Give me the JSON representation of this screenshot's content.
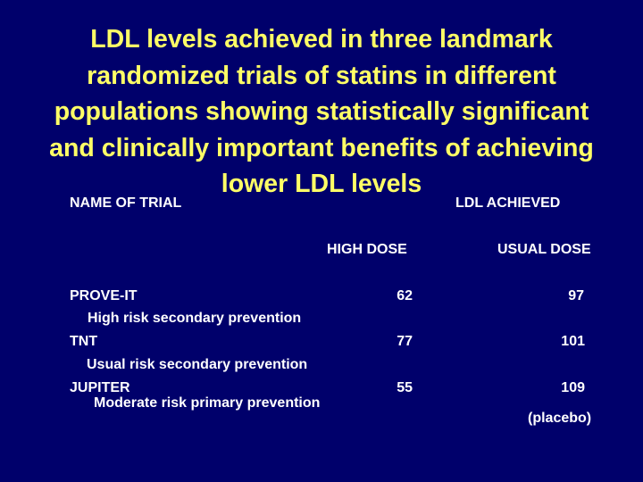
{
  "slide": {
    "title_lines": [
      "LDL levels achieved in three landmark",
      "randomized trials of statins in different",
      "populations showing statistically significant",
      "and clinically important benefits of achieving",
      "lower LDL levels"
    ],
    "colors": {
      "background": "#00006b",
      "title": "#ffff66",
      "body": "#ffffff"
    }
  },
  "table": {
    "header_trial": "NAME OF TRIAL",
    "header_ldl": "LDL ACHIEVED",
    "header_high": "HIGH DOSE",
    "header_usual": "USUAL DOSE",
    "rows": [
      {
        "name": "PROVE-IT",
        "sub": "High risk secondary prevention",
        "high": "62",
        "usual": "97"
      },
      {
        "name": "TNT",
        "sub": "Usual risk secondary prevention",
        "high": "77",
        "usual": "101"
      },
      {
        "name": "JUPITER",
        "sub": "Moderate risk primary prevention",
        "high": "55",
        "usual": "109"
      }
    ],
    "note": "(placebo)"
  }
}
